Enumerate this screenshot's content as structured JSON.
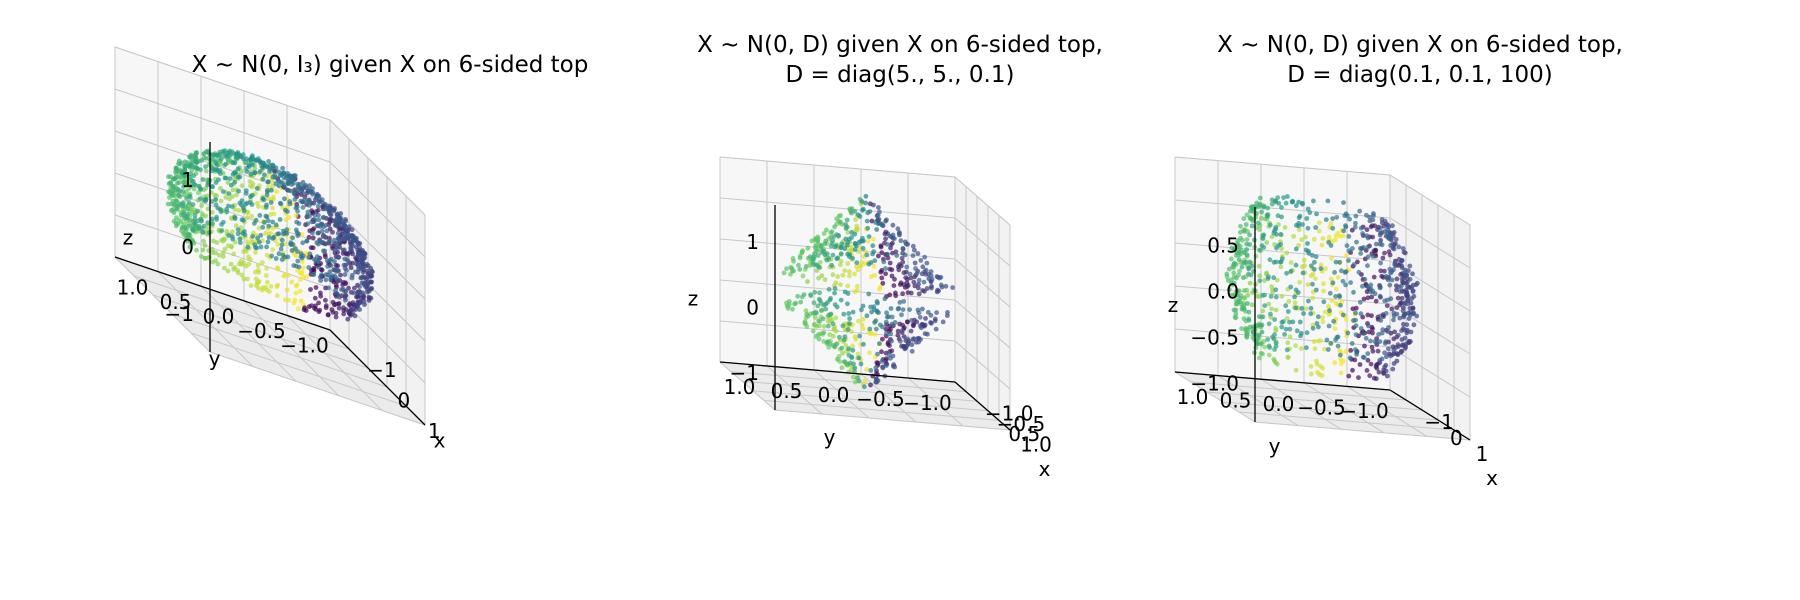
{
  "chart_data": [
    {
      "type": "scatter",
      "projection": "3d",
      "title": [
        "X ~ N(0, I₃) given X on 6-sided top"
      ],
      "xlabel": "x",
      "ylabel": "y",
      "zlabel": "z",
      "xticks": [
        "1",
        "0",
        "−1"
      ],
      "yticks": [
        "−1.0",
        "−0.5",
        "0.0",
        "0.5",
        "1.0"
      ],
      "zticks": [
        "1",
        "0",
        "−1"
      ],
      "xlim": [
        -1.3,
        1.3
      ],
      "ylim": [
        -1.3,
        1.3
      ],
      "zlim": [
        -1.3,
        1.3
      ],
      "colormap": "viridis",
      "point_count": 1400,
      "grid": true
    },
    {
      "type": "scatter",
      "projection": "3d",
      "title": [
        "X ~ N(0, D) given X on 6-sided top,",
        "D = diag(5., 5., 0.1)"
      ],
      "xlabel": "x",
      "ylabel": "y",
      "zlabel": "z",
      "xticks": [
        "1.0",
        "0.5",
        "−0.5",
        "−1.0"
      ],
      "yticks": [
        "−1.0",
        "−0.5",
        "0.0",
        "0.5",
        "1.0"
      ],
      "zticks": [
        "1",
        "0",
        "−1"
      ],
      "xlim": [
        -1.3,
        1.3
      ],
      "ylim": [
        -1.3,
        1.3
      ],
      "zlim": [
        -1.3,
        1.3
      ],
      "colormap": "viridis",
      "point_count": 700,
      "grid": true
    },
    {
      "type": "scatter",
      "projection": "3d",
      "title": [
        "X ~ N(0, D) given X on 6-sided top,",
        "D = diag(0.1, 0.1, 100)"
      ],
      "xlabel": "x",
      "ylabel": "y",
      "zlabel": "z",
      "xticks": [
        "1",
        "0",
        "−1"
      ],
      "yticks": [
        "−1.0",
        "−0.5",
        "0.0",
        "0.5",
        "1.0"
      ],
      "zticks": [
        "0.5",
        "0.0",
        "−0.5",
        "−1.0"
      ],
      "xlim": [
        -1.3,
        1.3
      ],
      "ylim": [
        -1.3,
        1.3
      ],
      "zlim": [
        -1.1,
        0.8
      ],
      "colormap": "viridis",
      "point_count": 900,
      "grid": true
    }
  ]
}
